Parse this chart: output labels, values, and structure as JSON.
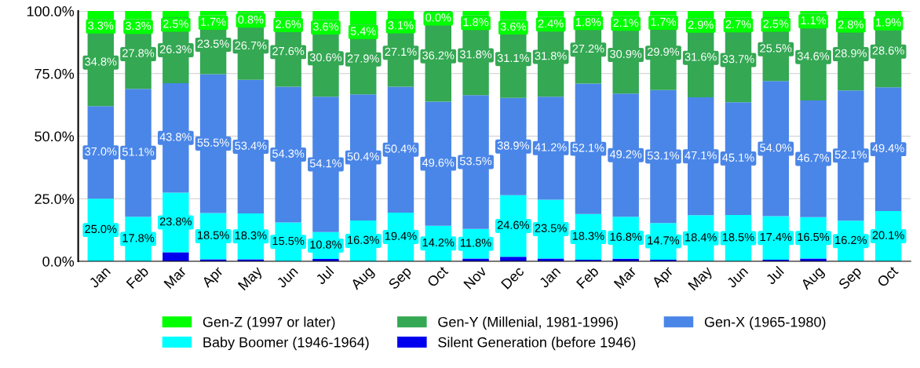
{
  "chart_data": {
    "type": "bar",
    "stacked": true,
    "categories": [
      "Jan",
      "Feb",
      "Mar",
      "Apr",
      "May",
      "Jun",
      "Jul",
      "Aug",
      "Sep",
      "Oct",
      "Nov",
      "Dec",
      "Jan",
      "Feb",
      "Mar",
      "Apr",
      "May",
      "Jun",
      "Jul",
      "Aug",
      "Sep",
      "Oct"
    ],
    "ylim": [
      0,
      100
    ],
    "yticks": [
      {
        "value": 0,
        "label": "0.0%"
      },
      {
        "value": 25,
        "label": "25.0%"
      },
      {
        "value": 50,
        "label": "50.0%"
      },
      {
        "value": 75,
        "label": "75.0%"
      },
      {
        "value": 100,
        "label": "100.0%"
      }
    ],
    "grid": "y",
    "legend": "bottom",
    "series": [
      {
        "name": "Silent Generation (before 1946)",
        "color": "#0000ee",
        "values": [
          0,
          0,
          3.6,
          0.8,
          0.8,
          0,
          0.9,
          0,
          0,
          0,
          1.1,
          1.8,
          1.1,
          0.6,
          1.0,
          0.6,
          0,
          0,
          0.6,
          1.1,
          0,
          0
        ],
        "value_labels": [
          null,
          null,
          null,
          null,
          null,
          null,
          null,
          null,
          null,
          null,
          null,
          null,
          null,
          null,
          null,
          null,
          null,
          null,
          null,
          null,
          null,
          null
        ]
      },
      {
        "name": "Baby Boomer (1946-1964)",
        "color": "#00ffff",
        "values": [
          25.0,
          17.8,
          23.8,
          18.5,
          18.3,
          15.5,
          10.8,
          16.3,
          19.4,
          14.2,
          11.8,
          24.6,
          23.5,
          18.3,
          16.8,
          14.7,
          18.4,
          18.5,
          17.4,
          16.5,
          16.2,
          20.1
        ],
        "value_labels": [
          "25.0%",
          "17.8%",
          "23.8%",
          "18.5%",
          "18.3%",
          "15.5%",
          "10.8%",
          "16.3%",
          "19.4%",
          "14.2%",
          "11.8%",
          "24.6%",
          "23.5%",
          "18.3%",
          "16.8%",
          "14.7%",
          "18.4%",
          "18.5%",
          "17.4%",
          "16.5%",
          "16.2%",
          "20.1%"
        ]
      },
      {
        "name": "Gen-X (1965-1980)",
        "color": "#4a86e8",
        "values": [
          37.0,
          51.1,
          43.8,
          55.5,
          53.4,
          54.3,
          54.1,
          50.4,
          50.4,
          49.6,
          53.5,
          38.9,
          41.2,
          52.1,
          49.2,
          53.1,
          47.1,
          45.1,
          54.0,
          46.7,
          52.1,
          49.4
        ],
        "value_labels": [
          "37.0%",
          "51.1%",
          "43.8%",
          "55.5%",
          "53.4%",
          "54.3%",
          "54.1%",
          "50.4%",
          "50.4%",
          "49.6%",
          "53.5%",
          "38.9%",
          "41.2%",
          "52.1%",
          "49.2%",
          "53.1%",
          "47.1%",
          "45.1%",
          "54.0%",
          "46.7%",
          "52.1%",
          "49.4%"
        ]
      },
      {
        "name": "Gen-Y (Millenial, 1981-1996)",
        "color": "#34a853",
        "values": [
          34.8,
          27.8,
          26.3,
          23.5,
          26.7,
          27.6,
          30.6,
          27.9,
          27.1,
          36.2,
          31.8,
          31.1,
          31.8,
          27.2,
          30.9,
          29.9,
          31.6,
          33.7,
          25.5,
          34.6,
          28.9,
          28.6
        ],
        "value_labels": [
          "34.8%",
          "27.8%",
          "26.3%",
          "23.5%",
          "26.7%",
          "27.6%",
          "30.6%",
          "27.9%",
          "27.1%",
          "36.2%",
          "31.8%",
          "31.1%",
          "31.8%",
          "27.2%",
          "30.9%",
          "29.9%",
          "31.6%",
          "33.7%",
          "25.5%",
          "34.6%",
          "28.9%",
          "28.6%"
        ]
      },
      {
        "name": "Gen-Z (1997 or later)",
        "color": "#00ff00",
        "values": [
          3.3,
          3.3,
          2.5,
          1.7,
          0.8,
          2.6,
          3.6,
          5.4,
          3.1,
          0.0,
          1.8,
          3.6,
          2.4,
          1.8,
          2.1,
          1.7,
          2.9,
          2.7,
          2.5,
          1.1,
          2.8,
          1.9
        ],
        "value_labels": [
          "3.3%",
          "3.3%",
          "2.5%",
          "1.7%",
          "0.8%",
          "2.6%",
          "3.6%",
          "5.4%",
          "3.1%",
          "0.0%",
          "1.8%",
          "3.6%",
          "2.4%",
          "1.8%",
          "2.1%",
          "1.7%",
          "2.9%",
          "2.7%",
          "2.5%",
          "1.1%",
          "2.8%",
          "1.9%"
        ]
      }
    ]
  }
}
